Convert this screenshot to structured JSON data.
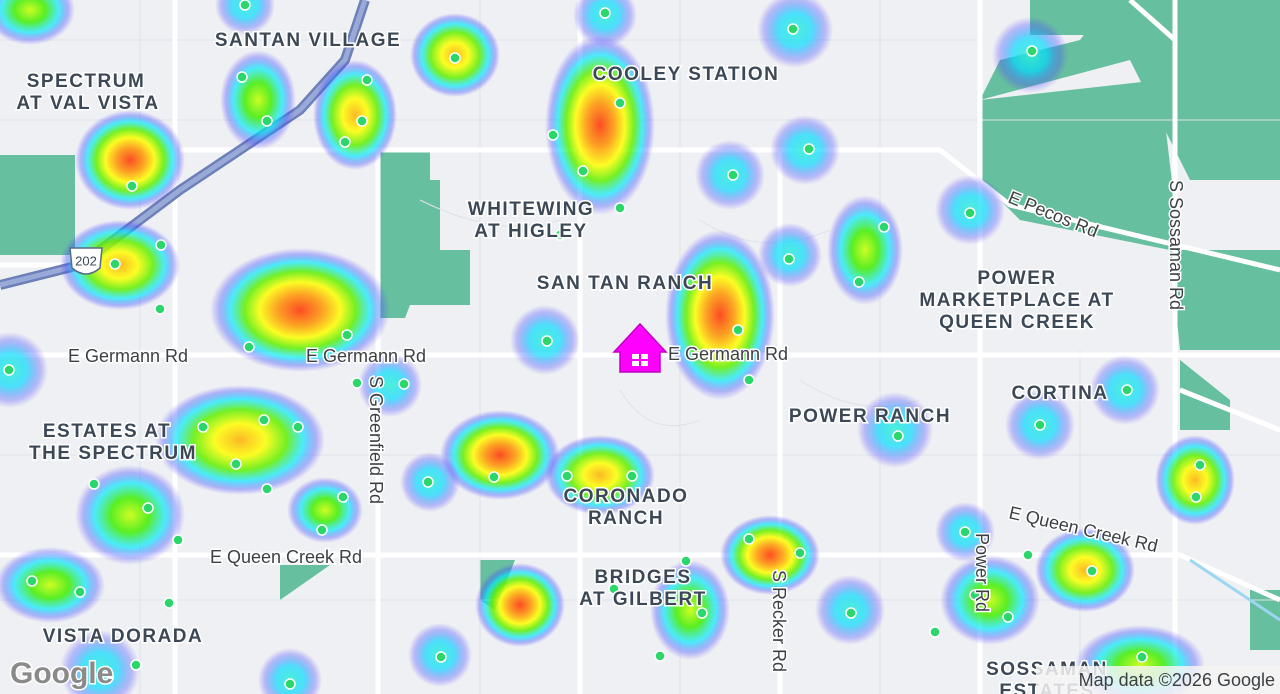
{
  "map": {
    "places": [
      {
        "lines": [
          "SANTAN VILLAGE"
        ]
      },
      {
        "lines": [
          "SPECTRUM",
          "AT VAL VISTA"
        ]
      },
      {
        "lines": [
          "COOLEY STATION"
        ]
      },
      {
        "lines": [
          "WHITEWING",
          "AT HIGLEY"
        ]
      },
      {
        "lines": [
          "SAN TAN RANCH"
        ]
      },
      {
        "lines": [
          "POWER",
          "MARKETPLACE AT",
          "QUEEN CREEK"
        ]
      },
      {
        "lines": [
          "CORTINA"
        ]
      },
      {
        "lines": [
          "POWER RANCH"
        ]
      },
      {
        "lines": [
          "ESTATES AT",
          "THE SPECTRUM"
        ]
      },
      {
        "lines": [
          "CORONADO",
          "RANCH"
        ]
      },
      {
        "lines": [
          "BRIDGES",
          "AT GILBERT"
        ]
      },
      {
        "lines": [
          "VISTA DORADA"
        ]
      },
      {
        "lines": [
          "SOSSAMAN",
          "ESTATES"
        ]
      }
    ],
    "roads": [
      "E Germann Rd",
      "E Germann Rd",
      "E Germann Rd",
      "S Greenfield Rd",
      "E Queen Creek Rd",
      "E Queen Creek Rd",
      "E Pecos Rd",
      "S Sossaman Rd",
      "Power Rd",
      "S Recker Rd"
    ],
    "route_shield": "202",
    "attribution": "Map data ©2026 Google",
    "logo": "Google"
  }
}
